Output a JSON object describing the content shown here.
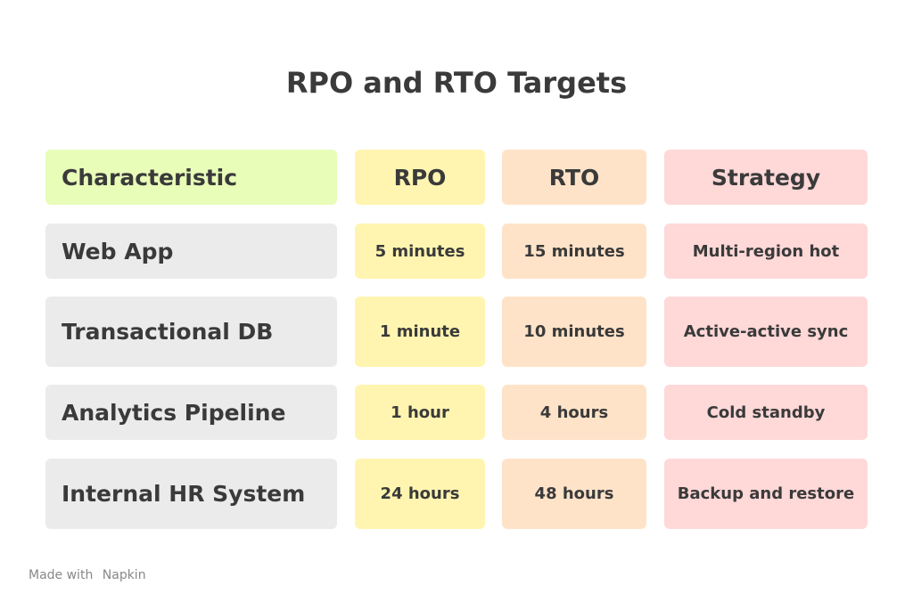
{
  "title": "RPO and RTO Targets",
  "table": {
    "header": [
      "Characteristic",
      "RPO",
      "RTO",
      "Strategy"
    ],
    "rows": [
      [
        "Web App",
        "5 minutes",
        "15 minutes",
        "Multi-region hot"
      ],
      [
        "Transactional DB",
        "1 minute",
        "10 minutes",
        "Active-active sync"
      ],
      [
        "Analytics Pipeline",
        "1 hour",
        "4 hours",
        "Cold standby"
      ],
      [
        "Internal HR System",
        "24 hours",
        "48 hours",
        "Backup and restore"
      ]
    ]
  },
  "footer": {
    "made_with": "Made with",
    "brand": "Napkin"
  }
}
